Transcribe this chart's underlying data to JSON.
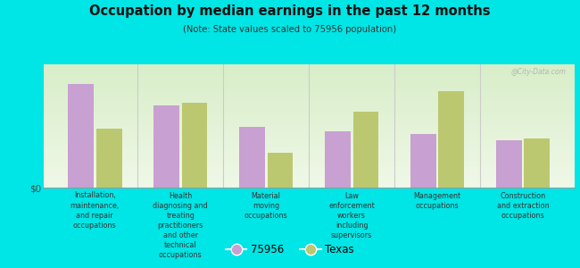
{
  "title": "Occupation by median earnings in the past 12 months",
  "subtitle": "(Note: State values scaled to 75956 population)",
  "categories": [
    "Installation,\nmaintenance,\nand repair\noccupations",
    "Health\ndiagnosing and\ntreating\npractitioners\nand other\ntechnical\noccupations",
    "Material\nmoving\noccupations",
    "Law\nenforcement\nworkers\nincluding\nsupervisors",
    "Management\noccupations",
    "Construction\nand extraction\noccupations"
  ],
  "values_75956": [
    0.88,
    0.7,
    0.52,
    0.48,
    0.46,
    0.4
  ],
  "values_texas": [
    0.5,
    0.72,
    0.3,
    0.65,
    0.82,
    0.42
  ],
  "color_75956": "#c8a0d2",
  "color_texas": "#bcc870",
  "bg_color": "#e8f2e0",
  "outer_bg": "#00e5e5",
  "ylabel": "$0",
  "legend_75956": "75956",
  "legend_texas": "Texas",
  "watermark": "@City-Data.com"
}
